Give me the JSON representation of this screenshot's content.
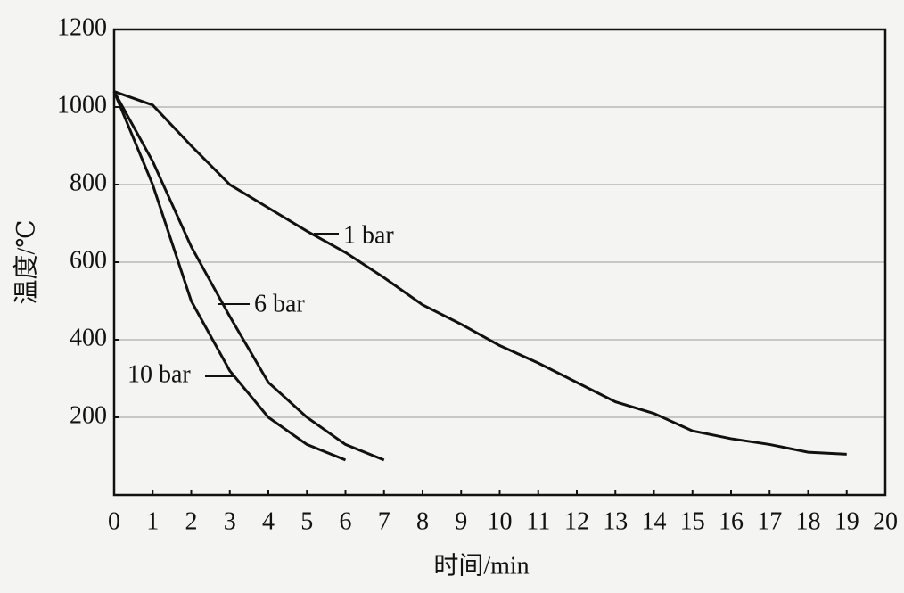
{
  "chart_data": {
    "type": "line",
    "xlabel": "时间/min",
    "ylabel": "温度/℃",
    "xlim": [
      0,
      20
    ],
    "ylim": [
      0,
      1200
    ],
    "xticks": [
      0,
      1,
      2,
      3,
      4,
      5,
      6,
      7,
      8,
      9,
      10,
      11,
      12,
      13,
      14,
      15,
      16,
      17,
      18,
      19,
      20
    ],
    "yticks": [
      200,
      400,
      600,
      800,
      1000,
      1200
    ],
    "grid": true,
    "series": [
      {
        "name": "1 bar",
        "color": "#111111",
        "x": [
          0,
          1,
          2,
          3,
          4,
          5,
          6,
          7,
          8,
          9,
          10,
          11,
          12,
          13,
          14,
          15,
          16,
          17,
          18,
          19
        ],
        "values": [
          1040,
          1005,
          900,
          800,
          740,
          680,
          625,
          560,
          490,
          440,
          385,
          340,
          290,
          240,
          210,
          165,
          145,
          130,
          110,
          105
        ]
      },
      {
        "name": "6 bar",
        "color": "#111111",
        "x": [
          0,
          1,
          2,
          3,
          4,
          5,
          6,
          7
        ],
        "values": [
          1040,
          860,
          640,
          460,
          290,
          200,
          130,
          90
        ]
      },
      {
        "name": "10 bar",
        "color": "#111111",
        "x": [
          0,
          1,
          2,
          3,
          4,
          5,
          6
        ],
        "values": [
          1040,
          800,
          500,
          320,
          200,
          130,
          90
        ]
      }
    ]
  }
}
